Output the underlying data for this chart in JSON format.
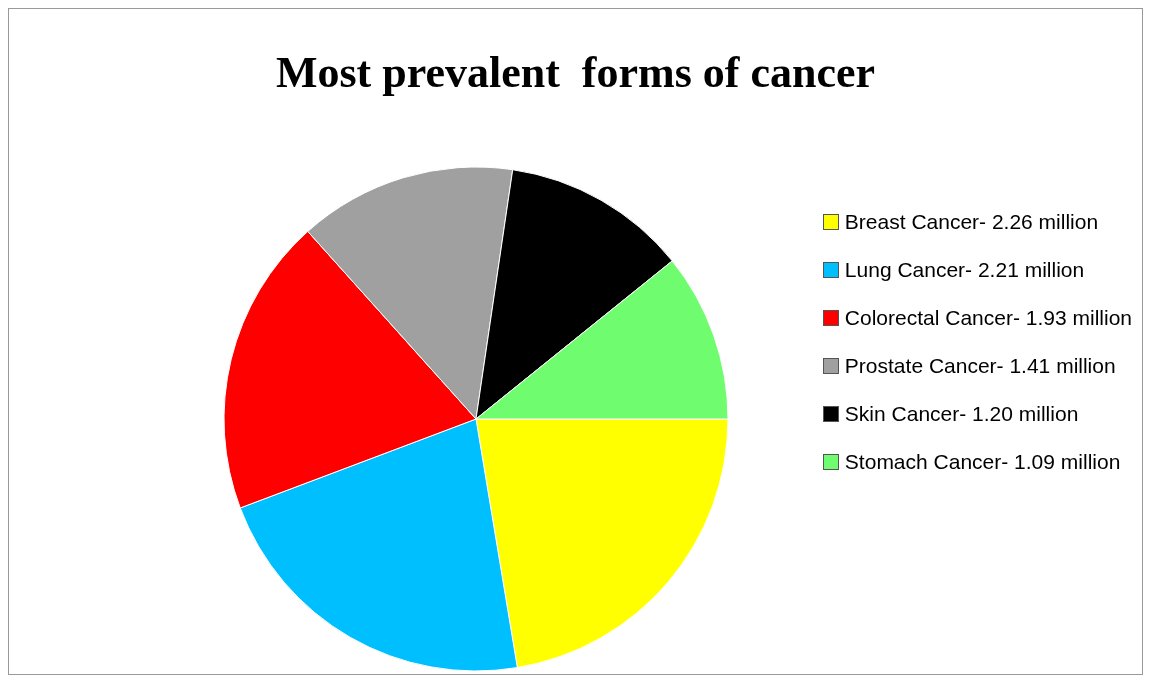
{
  "chart_data": {
    "type": "pie",
    "title": "Most prevalent  forms of cancer",
    "categories": [
      "Breast Cancer-",
      "Lung Cancer-",
      "Colorectal Cancer-",
      "Prostate Cancer-",
      "Skin Cancer-",
      "Stomach Cancer-"
    ],
    "values": [
      2.26,
      2.21,
      1.93,
      1.41,
      1.2,
      1.09
    ],
    "value_labels": [
      "2.26 million",
      "2.21 million",
      "1.93 million",
      "1.41 million",
      "1.20 million",
      "1.09 million"
    ],
    "colors": [
      "#ffff00",
      "#00bfff",
      "#ff0000",
      "#a0a0a0",
      "#000000",
      "#6ffc6f"
    ],
    "legend": "right"
  }
}
